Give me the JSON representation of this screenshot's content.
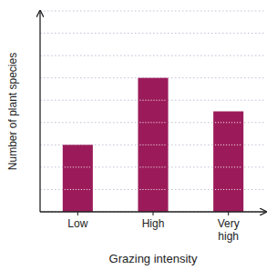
{
  "chart_data": {
    "type": "bar",
    "categories": [
      "Low",
      "High",
      "Very\nhigh"
    ],
    "values": [
      3,
      6,
      4.5
    ],
    "color": "#9B1B5A",
    "xlabel": "Grazing intensity",
    "ylabel": "Number of plant species",
    "ylim": [
      0,
      9
    ],
    "yticks": [
      0,
      1,
      2,
      3,
      4,
      5,
      6,
      7,
      8,
      9
    ],
    "grid": true,
    "tick_labels": "x"
  }
}
